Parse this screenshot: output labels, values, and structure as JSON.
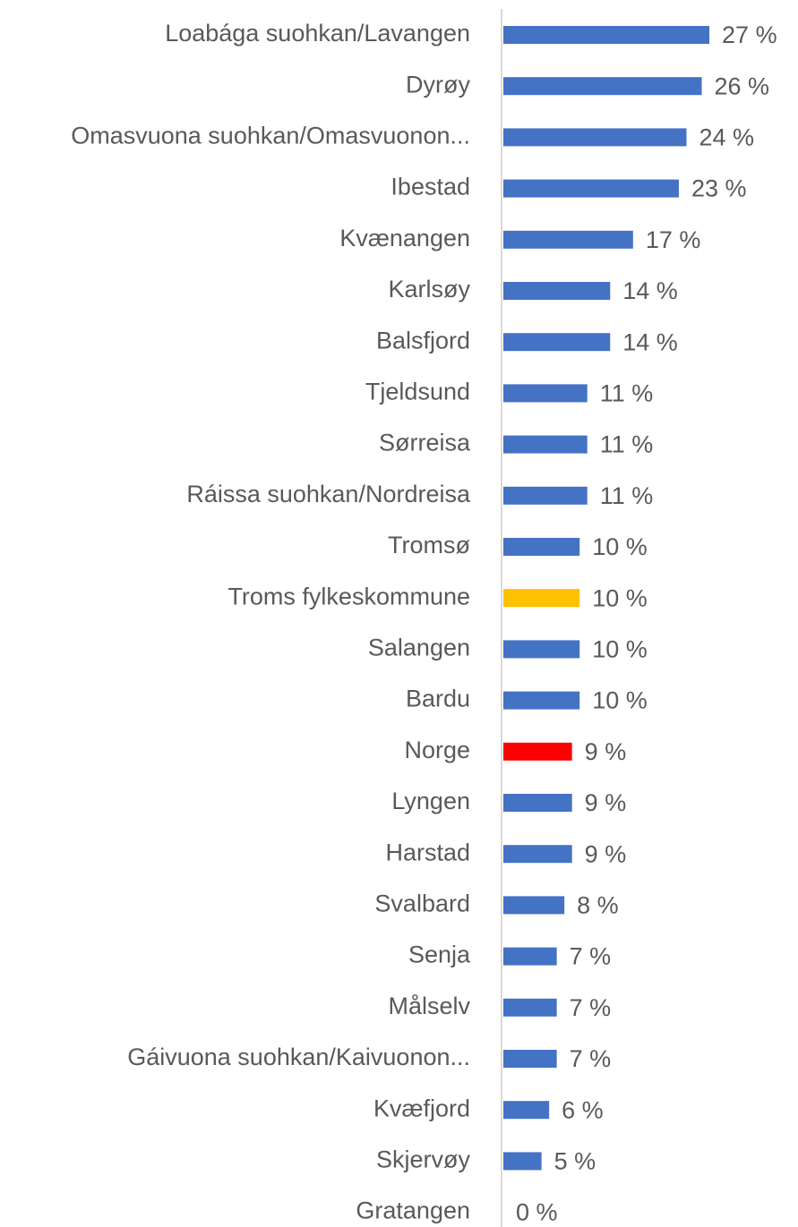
{
  "chart_data": {
    "type": "bar",
    "orientation": "horizontal",
    "categories": [
      "Loabága suohkan/Lavangen",
      "Dyrøy",
      "Omasvuona suohkan/Omasvuonon...",
      "Ibestad",
      "Kvænangen",
      "Karlsøy",
      "Balsfjord",
      "Tjeldsund",
      "Sørreisa",
      "Ráissa suohkan/Nordreisa",
      "Tromsø",
      "Troms fylkeskommune",
      "Salangen",
      "Bardu",
      "Norge",
      "Lyngen",
      "Harstad",
      "Svalbard",
      "Senja",
      "Målselv",
      "Gáivuona suohkan/Kaivuonon...",
      "Kvæfjord",
      "Skjervøy",
      "Gratangen"
    ],
    "values": [
      27,
      26,
      24,
      23,
      17,
      14,
      14,
      11,
      11,
      11,
      10,
      10,
      10,
      10,
      9,
      9,
      9,
      8,
      7,
      7,
      7,
      6,
      5,
      0
    ],
    "value_labels": [
      "27 %",
      "26 %",
      "24 %",
      "23 %",
      "17 %",
      "14 %",
      "14 %",
      "11 %",
      "11 %",
      "11 %",
      "10 %",
      "10 %",
      "10 %",
      "10 %",
      "9 %",
      "9 %",
      "9 %",
      "8 %",
      "7 %",
      "7 %",
      "7 %",
      "6 %",
      "5 %",
      "0 %"
    ],
    "colors": [
      "#4472c4",
      "#4472c4",
      "#4472c4",
      "#4472c4",
      "#4472c4",
      "#4472c4",
      "#4472c4",
      "#4472c4",
      "#4472c4",
      "#4472c4",
      "#4472c4",
      "#ffc000",
      "#4472c4",
      "#4472c4",
      "#ff0000",
      "#4472c4",
      "#4472c4",
      "#4472c4",
      "#4472c4",
      "#4472c4",
      "#4472c4",
      "#4472c4",
      "#4472c4",
      "#4472c4"
    ]
  }
}
